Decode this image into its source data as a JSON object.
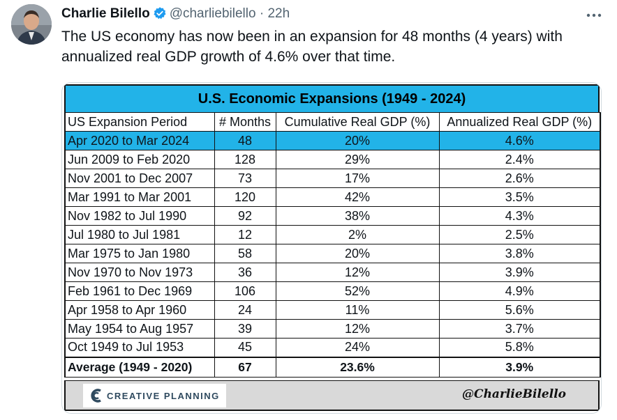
{
  "tweet": {
    "author_name": "Charlie Bilello",
    "handle": "@charliebilello",
    "separator": "·",
    "time": "22h",
    "text": "The US economy has now been in an expansion for 48 months (4 years) with annualized real GDP growth of 4.6% over that time.",
    "verified_color": "#1d9bf0"
  },
  "table": {
    "title": "U.S. Economic Expansions (1949 - 2024)",
    "header_color": "#22b3e8",
    "columns": [
      "US Expansion Period",
      "# Months",
      "Cumulative Real GDP (%)",
      "Annualized Real GDP (%)"
    ],
    "rows": [
      {
        "period": "Apr 2020 to Mar 2024",
        "months": "48",
        "cumulative": "20%",
        "annualized": "4.6%"
      },
      {
        "period": "Jun 2009 to Feb 2020",
        "months": "128",
        "cumulative": "29%",
        "annualized": "2.4%"
      },
      {
        "period": "Nov 2001 to Dec 2007",
        "months": "73",
        "cumulative": "17%",
        "annualized": "2.6%"
      },
      {
        "period": "Mar 1991 to Mar 2001",
        "months": "120",
        "cumulative": "42%",
        "annualized": "3.5%"
      },
      {
        "period": "Nov 1982 to Jul 1990",
        "months": "92",
        "cumulative": "38%",
        "annualized": "4.3%"
      },
      {
        "period": "Jul 1980 to Jul 1981",
        "months": "12",
        "cumulative": "2%",
        "annualized": "2.5%"
      },
      {
        "period": "Mar 1975 to Jan 1980",
        "months": "58",
        "cumulative": "20%",
        "annualized": "3.8%"
      },
      {
        "period": "Nov 1970 to Nov 1973",
        "months": "36",
        "cumulative": "12%",
        "annualized": "3.9%"
      },
      {
        "period": "Feb 1961 to Dec 1969",
        "months": "106",
        "cumulative": "52%",
        "annualized": "4.9%"
      },
      {
        "period": "Apr 1958 to Apr 1960",
        "months": "24",
        "cumulative": "11%",
        "annualized": "5.6%"
      },
      {
        "period": "May 1954 to Aug 1957",
        "months": "39",
        "cumulative": "12%",
        "annualized": "3.7%"
      },
      {
        "period": "Oct 1949 to Jul 1953",
        "months": "45",
        "cumulative": "24%",
        "annualized": "5.8%"
      }
    ],
    "average": {
      "period": "Average (1949 - 2020)",
      "months": "67",
      "cumulative": "23.6%",
      "annualized": "3.9%"
    }
  },
  "footer": {
    "logo_text": "CREATIVE PLANNING",
    "signature": "@CharlieBilello"
  }
}
